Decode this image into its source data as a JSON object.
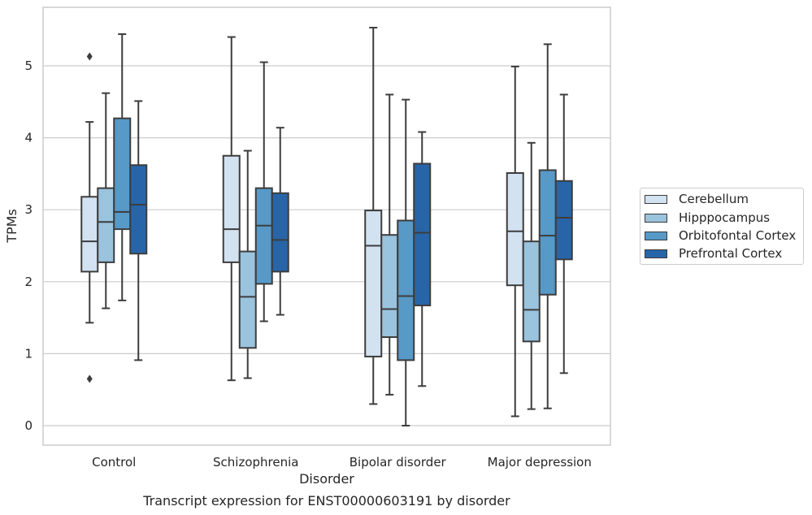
{
  "chart_data": {
    "type": "boxplot",
    "title": "",
    "caption": "Transcript expression for ENST00000603191 by disorder",
    "xlabel": "Disorder",
    "ylabel": "TPMs",
    "ylim": [
      -0.27,
      5.8
    ],
    "yticks": [
      0,
      1,
      2,
      3,
      4,
      5
    ],
    "grid": "horizontal",
    "legend_placement": "right",
    "categories": [
      "Control",
      "Schizophrenia",
      "Bipolar disorder",
      "Major depression"
    ],
    "series": [
      {
        "name": "Cerebellum",
        "color": "#d2e2f1",
        "boxes": [
          {
            "whisker_low": 1.43,
            "q1": 2.14,
            "median": 2.56,
            "q3": 3.18,
            "whisker_high": 4.22,
            "outliers": [
              5.13,
              0.65
            ]
          },
          {
            "whisker_low": 0.63,
            "q1": 2.27,
            "median": 2.73,
            "q3": 3.75,
            "whisker_high": 5.4,
            "outliers": []
          },
          {
            "whisker_low": 0.3,
            "q1": 0.96,
            "median": 2.5,
            "q3": 2.99,
            "whisker_high": 5.53,
            "outliers": []
          },
          {
            "whisker_low": 0.13,
            "q1": 1.95,
            "median": 2.7,
            "q3": 3.51,
            "whisker_high": 4.99,
            "outliers": []
          }
        ]
      },
      {
        "name": "Hipppocampus",
        "color": "#9ac3de",
        "boxes": [
          {
            "whisker_low": 1.63,
            "q1": 2.27,
            "median": 2.83,
            "q3": 3.3,
            "whisker_high": 4.62,
            "outliers": []
          },
          {
            "whisker_low": 0.66,
            "q1": 1.08,
            "median": 1.79,
            "q3": 2.42,
            "whisker_high": 3.82,
            "outliers": []
          },
          {
            "whisker_low": 0.43,
            "q1": 1.23,
            "median": 1.62,
            "q3": 2.65,
            "whisker_high": 4.6,
            "outliers": []
          },
          {
            "whisker_low": 0.23,
            "q1": 1.17,
            "median": 1.61,
            "q3": 2.56,
            "whisker_high": 3.93,
            "outliers": []
          }
        ]
      },
      {
        "name": "Orbitofontal Cortex",
        "color": "#5799c7",
        "boxes": [
          {
            "whisker_low": 1.74,
            "q1": 2.73,
            "median": 2.97,
            "q3": 4.27,
            "whisker_high": 5.44,
            "outliers": []
          },
          {
            "whisker_low": 1.45,
            "q1": 1.97,
            "median": 2.78,
            "q3": 3.3,
            "whisker_high": 5.05,
            "outliers": []
          },
          {
            "whisker_low": 0.0,
            "q1": 0.91,
            "median": 1.8,
            "q3": 2.85,
            "whisker_high": 4.53,
            "outliers": []
          },
          {
            "whisker_low": 0.24,
            "q1": 1.82,
            "median": 2.64,
            "q3": 3.55,
            "whisker_high": 5.3,
            "outliers": []
          }
        ]
      },
      {
        "name": "Prefrontal Cortex",
        "color": "#2765a8",
        "boxes": [
          {
            "whisker_low": 0.91,
            "q1": 2.39,
            "median": 3.07,
            "q3": 3.62,
            "whisker_high": 4.51,
            "outliers": []
          },
          {
            "whisker_low": 1.54,
            "q1": 2.14,
            "median": 2.58,
            "q3": 3.23,
            "whisker_high": 4.14,
            "outliers": []
          },
          {
            "whisker_low": 0.55,
            "q1": 1.67,
            "median": 2.68,
            "q3": 3.64,
            "whisker_high": 4.08,
            "outliers": []
          },
          {
            "whisker_low": 0.73,
            "q1": 2.31,
            "median": 2.89,
            "q3": 3.4,
            "whisker_high": 4.6,
            "outliers": []
          }
        ]
      }
    ]
  }
}
